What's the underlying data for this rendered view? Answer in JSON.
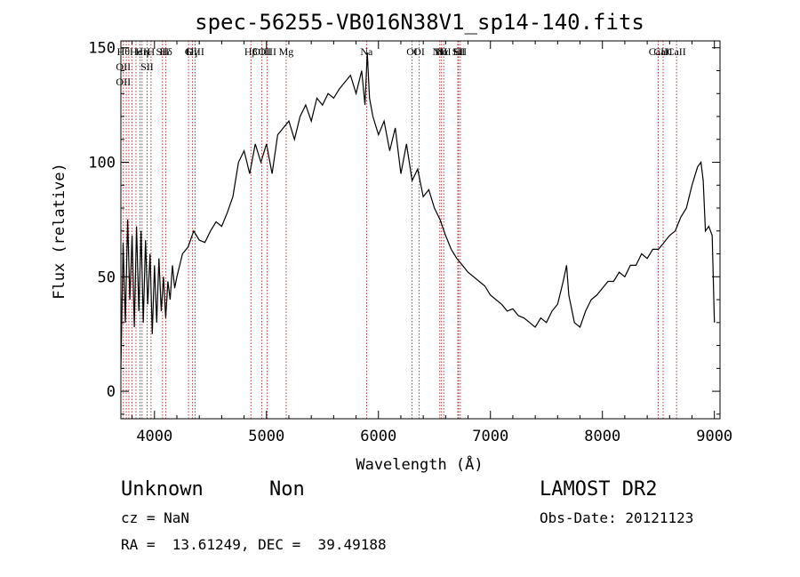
{
  "chart_data": {
    "type": "line",
    "title": "spec-56255-VB016N38V1_sp14-140.fits",
    "xlabel": "Wavelength (Å)",
    "ylabel": "Flux (relative)",
    "xlim": [
      3700,
      9050
    ],
    "ylim": [
      -12,
      153
    ],
    "x_ticks": [
      4000,
      5000,
      6000,
      7000,
      8000,
      9000
    ],
    "x_tick_labels": [
      "4000",
      "5000",
      "6000",
      "7000",
      "8000",
      "9000"
    ],
    "y_ticks": [
      0,
      50,
      100,
      150
    ],
    "y_tick_labels": [
      "0",
      "50",
      "100",
      "150"
    ],
    "grid": false,
    "series": [
      {
        "line_color": "#000000",
        "x": [
          3700,
          3720,
          3740,
          3760,
          3780,
          3800,
          3820,
          3840,
          3860,
          3880,
          3900,
          3920,
          3940,
          3960,
          3980,
          4000,
          4020,
          4040,
          4060,
          4080,
          4100,
          4120,
          4140,
          4160,
          4180,
          4200,
          4250,
          4300,
          4350,
          4400,
          4450,
          4500,
          4550,
          4600,
          4650,
          4700,
          4750,
          4800,
          4850,
          4900,
          4950,
          5000,
          5050,
          5100,
          5150,
          5200,
          5250,
          5300,
          5350,
          5400,
          5450,
          5500,
          5550,
          5600,
          5650,
          5700,
          5750,
          5800,
          5850,
          5880,
          5900,
          5920,
          5950,
          6000,
          6050,
          6100,
          6150,
          6200,
          6250,
          6300,
          6350,
          6400,
          6450,
          6500,
          6550,
          6600,
          6650,
          6700,
          6750,
          6800,
          6850,
          6900,
          6950,
          7000,
          7050,
          7100,
          7150,
          7200,
          7250,
          7300,
          7350,
          7400,
          7450,
          7500,
          7550,
          7600,
          7650,
          7680,
          7700,
          7750,
          7800,
          7850,
          7900,
          7950,
          8000,
          8050,
          8100,
          8150,
          8200,
          8250,
          8300,
          8350,
          8400,
          8450,
          8500,
          8550,
          8600,
          8650,
          8700,
          8750,
          8800,
          8850,
          8880,
          8900,
          8920,
          8950,
          8980,
          9000
        ],
        "y": [
          10,
          65,
          30,
          75,
          40,
          68,
          28,
          72,
          35,
          70,
          30,
          66,
          38,
          60,
          25,
          55,
          30,
          58,
          35,
          50,
          32,
          48,
          40,
          55,
          45,
          50,
          60,
          63,
          70,
          66,
          65,
          70,
          74,
          72,
          78,
          85,
          100,
          105,
          95,
          108,
          100,
          108,
          95,
          112,
          115,
          118,
          110,
          120,
          125,
          118,
          128,
          125,
          130,
          128,
          132,
          135,
          138,
          130,
          140,
          125,
          148,
          128,
          120,
          112,
          118,
          105,
          115,
          95,
          108,
          92,
          97,
          85,
          88,
          80,
          75,
          68,
          62,
          58,
          55,
          52,
          50,
          48,
          46,
          42,
          40,
          38,
          35,
          36,
          33,
          32,
          30,
          28,
          32,
          30,
          35,
          38,
          48,
          55,
          42,
          30,
          28,
          35,
          40,
          42,
          45,
          48,
          48,
          52,
          50,
          55,
          55,
          60,
          58,
          62,
          62,
          65,
          68,
          70,
          76,
          80,
          90,
          98,
          100,
          92,
          70,
          72,
          68,
          30
        ]
      }
    ],
    "lines": [
      {
        "x": 3722,
        "top": [
          "Hθ",
          "OII",
          "OII"
        ]
      },
      {
        "x": 3748,
        "top": []
      },
      {
        "x": 3771,
        "top": []
      },
      {
        "x": 3798,
        "top": []
      },
      {
        "x": 3835,
        "top": [
          "He"
        ]
      },
      {
        "x": 3870,
        "top": []
      },
      {
        "x": 3889,
        "top": [
          "Hη"
        ]
      },
      {
        "x": 3934,
        "top": [
          "K",
          "SII"
        ]
      },
      {
        "x": 3969,
        "top": [
          "H"
        ]
      },
      {
        "x": 4072,
        "top": [
          "SII"
        ]
      },
      {
        "x": 4102,
        "top": [
          "Hδ"
        ]
      },
      {
        "x": 4304,
        "top": [
          "G"
        ]
      },
      {
        "x": 4340,
        "top": [
          "Hγ"
        ]
      },
      {
        "x": 4363,
        "top": [
          "OIII"
        ]
      },
      {
        "x": 4861,
        "top": [
          "Hβ"
        ]
      },
      {
        "x": 4959,
        "top": [
          "OIII"
        ]
      },
      {
        "x": 5007,
        "top": [
          "OIII"
        ]
      },
      {
        "x": 5176,
        "top": [
          "Mg"
        ]
      },
      {
        "x": 5894,
        "top": [
          "Na"
        ]
      },
      {
        "x": 6300,
        "top": [
          "OI"
        ]
      },
      {
        "x": 6364,
        "top": [
          "OI"
        ]
      },
      {
        "x": 6548,
        "top": [
          "NII"
        ]
      },
      {
        "x": 6563,
        "top": [
          "Hα"
        ]
      },
      {
        "x": 6583,
        "top": [
          "NII"
        ]
      },
      {
        "x": 6708,
        "top": [
          "Li"
        ]
      },
      {
        "x": 6716,
        "top": [
          "SII"
        ]
      },
      {
        "x": 6731,
        "top": [
          "SII"
        ]
      },
      {
        "x": 8498,
        "top": [
          "CaII"
        ]
      },
      {
        "x": 8542,
        "top": [
          "CaII"
        ]
      },
      {
        "x": 8662,
        "top": [
          "CaII"
        ]
      }
    ]
  },
  "footer": {
    "class_label": "Unknown",
    "subclass_label": "Non",
    "survey_label": "LAMOST DR2",
    "cz_label": "cz = NaN",
    "obs_date_label": "Obs-Date: 20121123",
    "coords_label": "RA =  13.61249, DEC =  39.49188"
  }
}
